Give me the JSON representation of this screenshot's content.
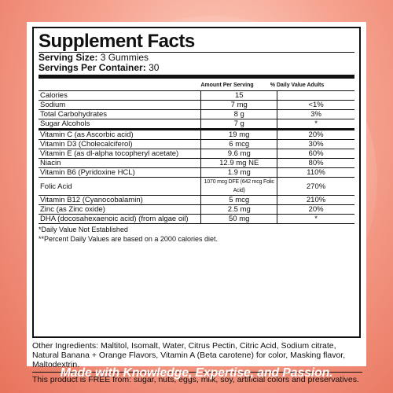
{
  "title": "Supplement Facts",
  "serving_size_label": "Serving Size:",
  "serving_size_value": "3 Gummies",
  "servings_label": "Servings Per Container:",
  "servings_value": "30",
  "columns": {
    "amount": "Amount Per Serving",
    "daily_value": "% Daily Value Adults"
  },
  "rows": [
    {
      "name": "Calories",
      "amount": "15",
      "dv": ""
    },
    {
      "name": "Sodium",
      "amount": "7 mg",
      "dv": "<1%"
    },
    {
      "name": "Total Carbohydrates",
      "amount": "8 g",
      "dv": "3%"
    },
    {
      "name": "Sugar Alcohols",
      "amount": "7 g",
      "dv": "*"
    },
    {
      "name": "Vitamin C (as Ascorbic acid)",
      "amount": "19 mg",
      "dv": "20%"
    },
    {
      "name": "Vitamin D3 (Cholecalciferol)",
      "amount": "6 mcg",
      "dv": "30%"
    },
    {
      "name": "Vitamin E (as dl-alpha tocopheryl acetate)",
      "amount": "9.6 mg",
      "dv": "60%"
    },
    {
      "name": "Niacin",
      "amount": "12.9 mg NE",
      "dv": "80%"
    },
    {
      "name": "Vitamin B6 (Pyridoxine HCL)",
      "amount": "1.9 mg",
      "dv": "110%"
    },
    {
      "name": "Folic Acid",
      "amount": "1070 mcg DFE (642 mcg Folic Acid)",
      "dv": "270%"
    },
    {
      "name": "Vitamin B12 (Cyanocobalamin)",
      "amount": "5 mcg",
      "dv": "210%"
    },
    {
      "name": "Zinc (as Zinc oxide)",
      "amount": "2.5 mg",
      "dv": "20%"
    },
    {
      "name": "DHA (docosahexaenoic acid) (from algae oil)",
      "amount": "50 mg",
      "dv": "*"
    }
  ],
  "note1": "*Daily Value Not Established",
  "note2": "**Percent Daily Values are based on a 2000 calories diet.",
  "other_ingredients": "Other Ingredients: Maltitol, Isomalt, Water, Citrus Pectin, Citric Acid, Sodium citrate, Natural Banana + Orange Flavors, Vitamin A (Beta carotene) for color, Masking flavor, Maltodextrin.",
  "free_from": "This product is FREE from: sugar, nuts, eggs, milk, soy, artificial colors and preservatives.",
  "slogan": "Made with Knowledge, Expertise, and Passion."
}
